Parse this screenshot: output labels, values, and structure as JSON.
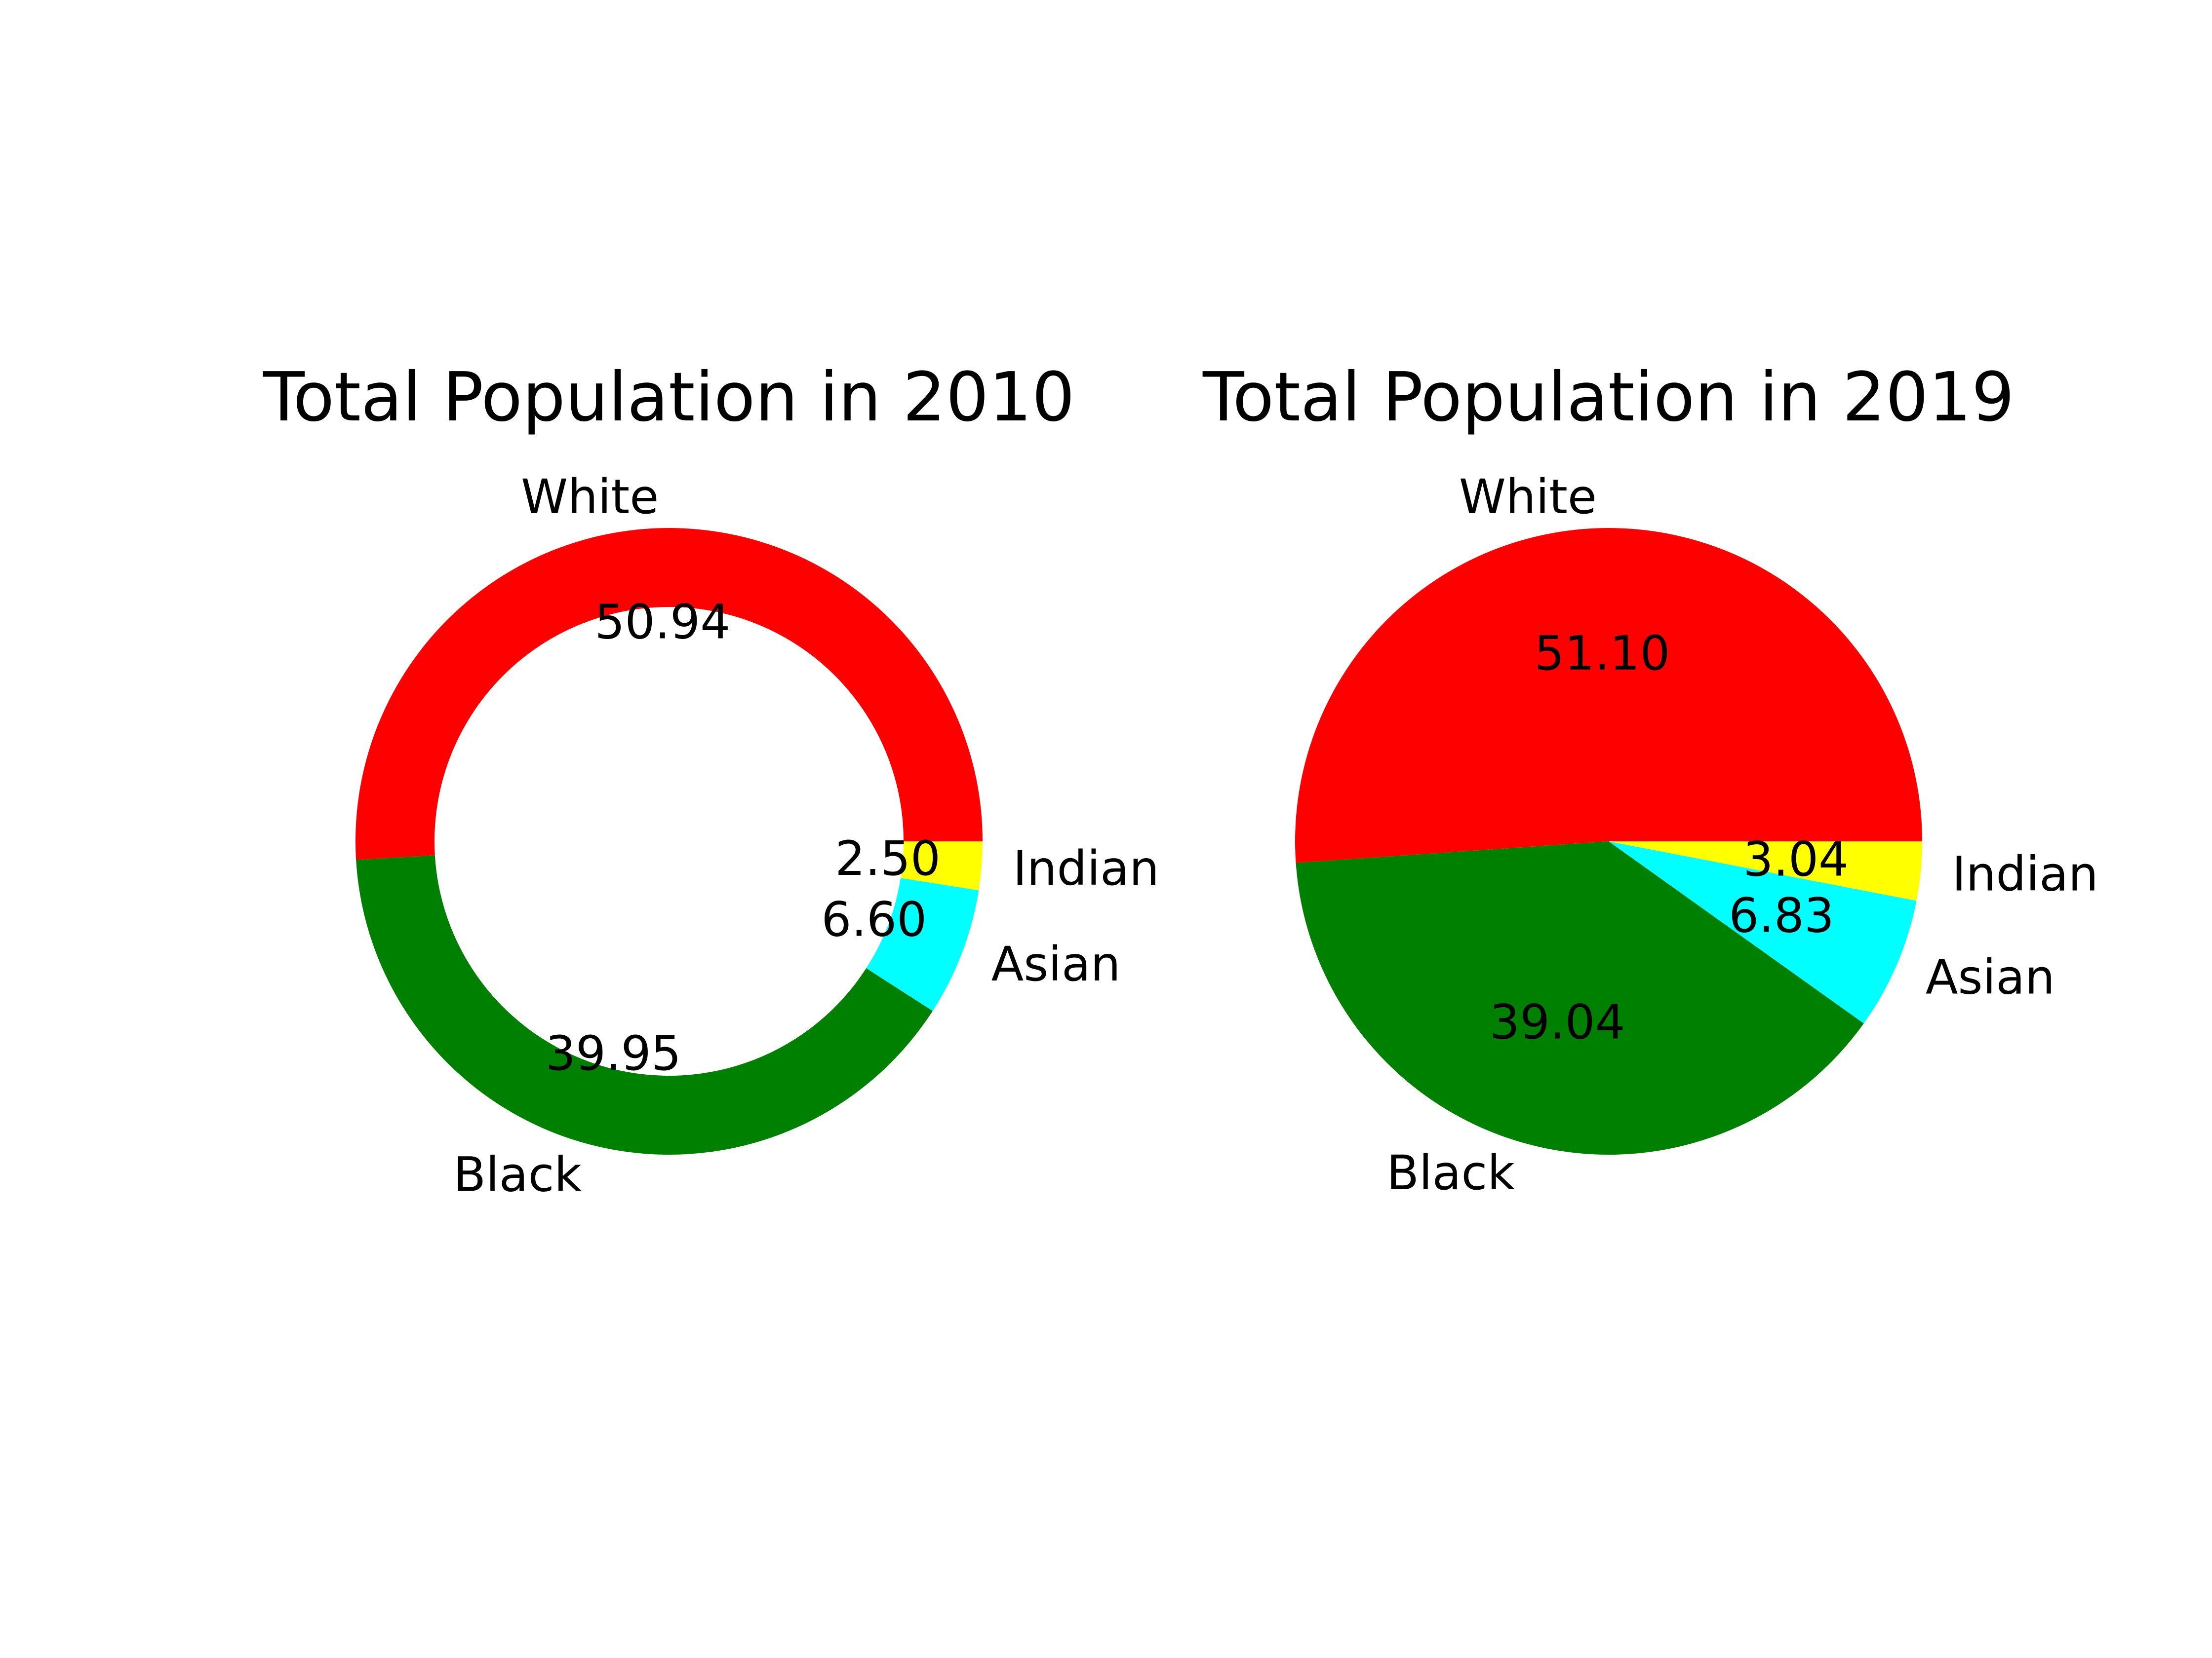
{
  "chart_data": [
    {
      "type": "pie",
      "variant": "donut",
      "title": "Total Population in 2010",
      "categories": [
        "White",
        "Black",
        "Asian",
        "Indian"
      ],
      "values": [
        50.94,
        39.95,
        6.6,
        2.5
      ],
      "value_labels": [
        "50.94",
        "39.95",
        "6.60",
        "2.50"
      ],
      "colors": [
        "#ff0000",
        "#008000",
        "#00ffff",
        "#ffff00"
      ],
      "direction": "counterclockwise",
      "legend": "none"
    },
    {
      "type": "pie",
      "title": "Total Population in 2019",
      "categories": [
        "White",
        "Black",
        "Asian",
        "Indian"
      ],
      "values": [
        51.1,
        39.04,
        6.83,
        3.04
      ],
      "value_labels": [
        "51.10",
        "39.04",
        "6.83",
        "3.04"
      ],
      "colors": [
        "#ff0000",
        "#008000",
        "#00ffff",
        "#ffff00"
      ],
      "direction": "counterclockwise",
      "legend": "none"
    }
  ]
}
